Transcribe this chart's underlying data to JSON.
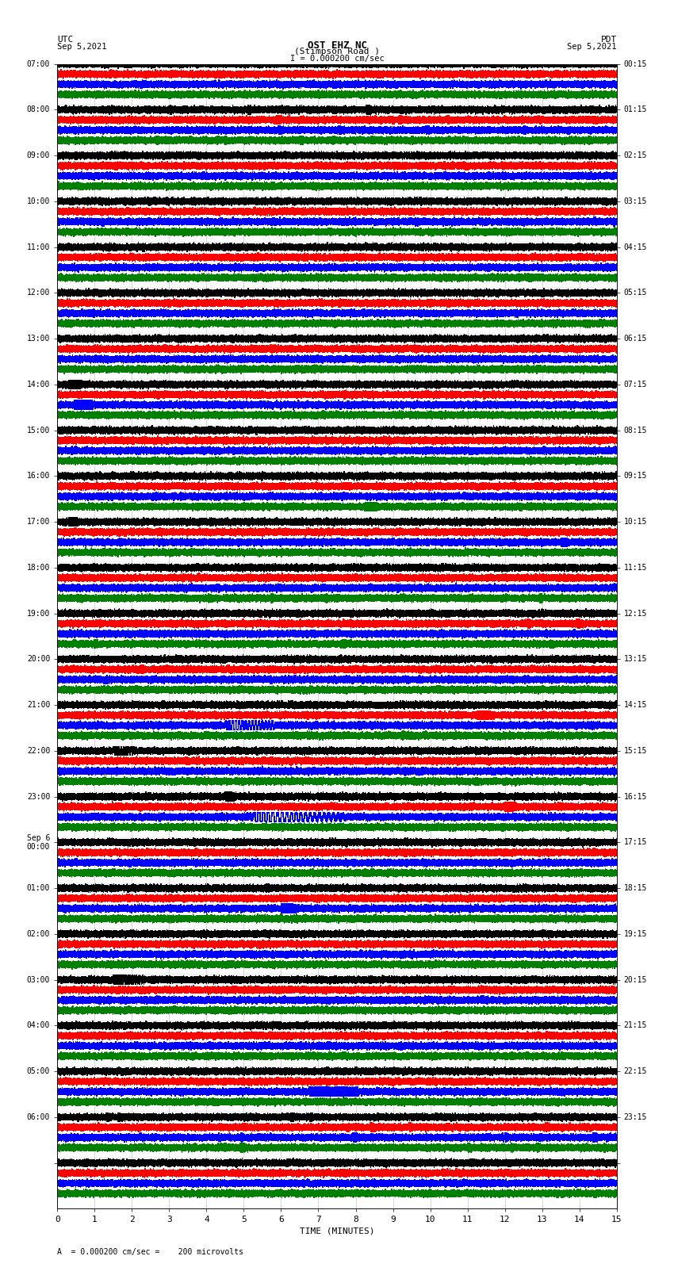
{
  "title_line1": "OST EHZ NC",
  "title_line2": "(Stimpson Road )",
  "scale_label": "I = 0.000200 cm/sec",
  "footer_label": "A  = 0.000200 cm/sec =    200 microvolts",
  "utc_label": "UTC",
  "utc_date": "Sep 5,2021",
  "pdt_label": "PDT",
  "pdt_date": "Sep 5,2021",
  "xlabel": "TIME (MINUTES)",
  "rows": 25,
  "traces_per_row": 4,
  "minutes_per_row": 15,
  "xlim": [
    0,
    15
  ],
  "xticks": [
    0,
    1,
    2,
    3,
    4,
    5,
    6,
    7,
    8,
    9,
    10,
    11,
    12,
    13,
    14,
    15
  ],
  "left_times": [
    "07:00",
    "08:00",
    "09:00",
    "10:00",
    "11:00",
    "12:00",
    "13:00",
    "14:00",
    "15:00",
    "16:00",
    "17:00",
    "18:00",
    "19:00",
    "20:00",
    "21:00",
    "22:00",
    "23:00",
    "Sep 6\n00:00",
    "01:00",
    "02:00",
    "03:00",
    "04:00",
    "05:00",
    "06:00",
    ""
  ],
  "right_times": [
    "00:15",
    "01:15",
    "02:15",
    "03:15",
    "04:15",
    "05:15",
    "06:15",
    "07:15",
    "08:15",
    "09:15",
    "10:15",
    "11:15",
    "12:15",
    "13:15",
    "14:15",
    "15:15",
    "16:15",
    "17:15",
    "18:15",
    "19:15",
    "20:15",
    "21:15",
    "22:15",
    "23:15",
    ""
  ],
  "trace_colors": [
    "black",
    "red",
    "blue",
    "green"
  ],
  "bg_color": "white",
  "grid_color": "#999999",
  "plot_bg": "white",
  "sample_rate": 100,
  "seed": 42
}
